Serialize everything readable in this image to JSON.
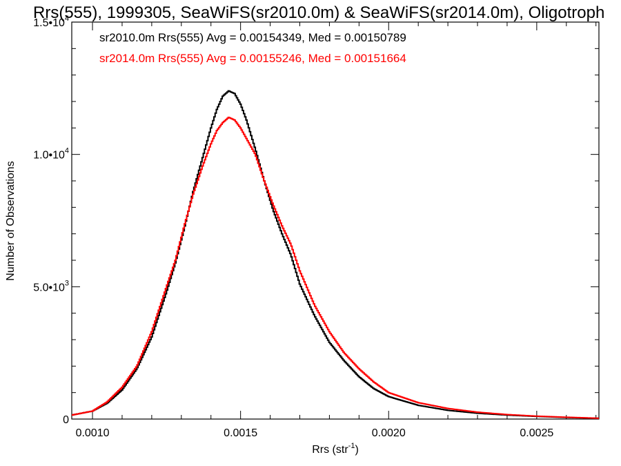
{
  "chart_data": {
    "type": "line",
    "title": "Rrs(555), 1999305, SeaWiFS(sr2010.0m) & SeaWiFS(sr2014.0m), Oligotroph",
    "xlabel": "Rrs (str",
    "xlabel_sup": "-1",
    "xlabel_suffix": ")",
    "ylabel": "Number of Observations",
    "xlim": [
      0.00093,
      0.00271
    ],
    "ylim": [
      0,
      15000
    ],
    "x_ticks": [
      {
        "value": 0.001,
        "label": "0.0010"
      },
      {
        "value": 0.0015,
        "label": "0.0015"
      },
      {
        "value": 0.002,
        "label": "0.0020"
      },
      {
        "value": 0.0025,
        "label": "0.0025"
      }
    ],
    "y_ticks": [
      {
        "value": 0,
        "mant": "0",
        "exp": ""
      },
      {
        "value": 5000,
        "mant": "5.0•10",
        "exp": "3"
      },
      {
        "value": 10000,
        "mant": "1.0•10",
        "exp": "4"
      },
      {
        "value": 15000,
        "mant": "1.5•10",
        "exp": "4"
      }
    ],
    "grid": false,
    "legend_position": "top-left",
    "series": [
      {
        "name": "sr2010.0m Rrs(555) Avg = 0.00154349, Med = 0.00150789",
        "color": "#000000",
        "x": [
          0.00093,
          0.001,
          0.00105,
          0.0011,
          0.00115,
          0.0012,
          0.00125,
          0.00128,
          0.00131,
          0.00134,
          0.00137,
          0.0014,
          0.00142,
          0.00144,
          0.00146,
          0.00148,
          0.0015,
          0.00152,
          0.00155,
          0.00158,
          0.00161,
          0.00164,
          0.00167,
          0.0017,
          0.00175,
          0.0018,
          0.00185,
          0.0019,
          0.00195,
          0.002,
          0.0021,
          0.0022,
          0.0023,
          0.0024,
          0.0025,
          0.0026,
          0.00271
        ],
        "y": [
          150,
          300,
          600,
          1100,
          1900,
          3100,
          4800,
          5900,
          7200,
          8600,
          9800,
          11000,
          11700,
          12200,
          12400,
          12300,
          11900,
          11300,
          10200,
          9000,
          7900,
          7000,
          6200,
          5100,
          3900,
          2900,
          2200,
          1600,
          1150,
          850,
          520,
          330,
          220,
          150,
          100,
          60,
          30
        ]
      },
      {
        "name": "sr2014.0m Rrs(555) Avg = 0.00155246, Med = 0.00151664",
        "color": "#ff0000",
        "x": [
          0.00093,
          0.001,
          0.00105,
          0.0011,
          0.00115,
          0.0012,
          0.00125,
          0.00128,
          0.00131,
          0.00134,
          0.00137,
          0.0014,
          0.00142,
          0.00144,
          0.00146,
          0.00148,
          0.0015,
          0.00152,
          0.00155,
          0.00158,
          0.00161,
          0.00164,
          0.00167,
          0.0017,
          0.00175,
          0.0018,
          0.00185,
          0.0019,
          0.00195,
          0.002,
          0.0021,
          0.0022,
          0.0023,
          0.0024,
          0.0025,
          0.0026,
          0.00271
        ],
        "y": [
          150,
          300,
          650,
          1200,
          2000,
          3300,
          5000,
          6000,
          7300,
          8500,
          9500,
          10400,
          10900,
          11200,
          11400,
          11300,
          11000,
          10600,
          10000,
          9000,
          8100,
          7300,
          6600,
          5600,
          4300,
          3300,
          2500,
          1900,
          1400,
          1000,
          620,
          400,
          260,
          170,
          110,
          70,
          30
        ]
      }
    ]
  }
}
